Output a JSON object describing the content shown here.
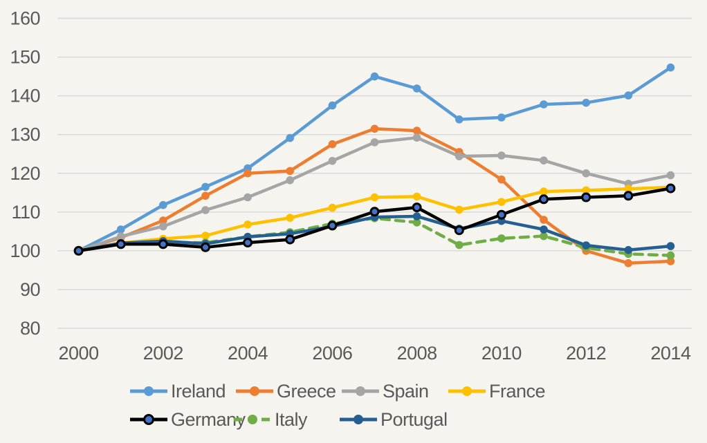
{
  "chart_data": {
    "type": "line",
    "title": "",
    "xlabel": "",
    "ylabel": "",
    "x": [
      2000,
      2001,
      2002,
      2003,
      2004,
      2005,
      2006,
      2007,
      2008,
      2009,
      2010,
      2011,
      2012,
      2013,
      2014
    ],
    "x_tick_labels": [
      "2000",
      "2002",
      "2004",
      "2006",
      "2008",
      "2010",
      "2012",
      "2014"
    ],
    "x_tick_years": [
      2000,
      2002,
      2004,
      2006,
      2008,
      2010,
      2012,
      2014
    ],
    "ylim": [
      80,
      160
    ],
    "yticks": [
      80,
      90,
      100,
      110,
      120,
      130,
      140,
      150,
      160
    ],
    "y_tick_labels": [
      "80",
      "90",
      "100",
      "110",
      "120",
      "130",
      "140",
      "150",
      "160"
    ],
    "grid": "horizontal",
    "legend_position": "bottom",
    "colors": {
      "background": "#f5f4ee",
      "gridline": "#d9d9d9",
      "axis_text": "#595959"
    },
    "series": [
      {
        "name": "Ireland",
        "color": "#5B9BD5",
        "dashed": false,
        "marker": "circle",
        "values": [
          100,
          105.5,
          111.8,
          116.5,
          121.3,
          129.1,
          137.5,
          145.0,
          141.9,
          133.9,
          134.4,
          137.8,
          138.2,
          140.1,
          147.3
        ]
      },
      {
        "name": "Greece",
        "color": "#ED7D31",
        "dashed": false,
        "marker": "circle",
        "values": [
          100,
          103.4,
          107.8,
          114.2,
          120.0,
          120.6,
          127.5,
          131.5,
          131.0,
          125.5,
          118.4,
          108.0,
          100.0,
          96.8,
          97.3
        ]
      },
      {
        "name": "Spain",
        "color": "#A5A5A5",
        "dashed": false,
        "marker": "circle",
        "values": [
          100,
          103.7,
          106.3,
          110.5,
          113.8,
          118.2,
          123.2,
          128.0,
          129.2,
          124.4,
          124.6,
          123.3,
          120.0,
          117.3,
          119.5
        ]
      },
      {
        "name": "France",
        "color": "#FFC000",
        "dashed": false,
        "marker": "circle",
        "values": [
          100,
          102.0,
          103.1,
          103.9,
          106.8,
          108.5,
          111.1,
          113.8,
          114.0,
          110.6,
          112.6,
          115.3,
          115.6,
          116.0,
          116.4
        ]
      },
      {
        "name": "Germany",
        "color": "#000000",
        "dashed": false,
        "marker": "circle",
        "marker_fill": "#4472C4",
        "marker_stroke": "#000000",
        "values": [
          100,
          101.7,
          101.7,
          100.9,
          102.1,
          102.9,
          106.5,
          110.1,
          111.2,
          105.3,
          109.3,
          113.3,
          113.8,
          114.2,
          116.1
        ]
      },
      {
        "name": "Italy",
        "color": "#70AD47",
        "dashed": true,
        "marker": "circle",
        "values": [
          100,
          101.8,
          102.1,
          102.1,
          103.6,
          104.8,
          107.0,
          108.4,
          107.3,
          101.5,
          103.2,
          103.8,
          100.8,
          99.2,
          98.8
        ]
      },
      {
        "name": "Portugal",
        "color": "#255E91",
        "dashed": false,
        "marker": "circle",
        "values": [
          100,
          102.0,
          102.5,
          101.8,
          103.6,
          104.4,
          106.3,
          108.7,
          108.9,
          105.7,
          107.7,
          105.5,
          101.4,
          100.2,
          101.2
        ]
      }
    ]
  }
}
